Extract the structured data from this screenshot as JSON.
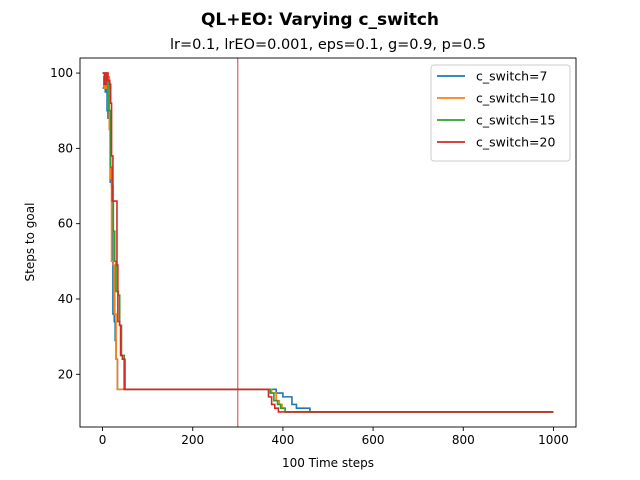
{
  "chart_data": {
    "type": "line",
    "title": "QL+EO: Varying c_switch",
    "subtitle": "lr=0.1, lrEO=0.001, eps=0.1, g=0.9, p=0.5",
    "xlabel": "100 Time steps",
    "ylabel": "Steps to goal",
    "xlim": [
      -50,
      1050
    ],
    "ylim": [
      6,
      104
    ],
    "xticks": [
      0,
      200,
      400,
      600,
      800,
      1000
    ],
    "yticks": [
      20,
      40,
      60,
      80,
      100
    ],
    "grid": false,
    "legend_position": "top-right",
    "vline": {
      "x": 300,
      "color": "#d62728"
    },
    "series": [
      {
        "name": "c_switch=7",
        "color": "#1f77b4",
        "points": [
          [
            0,
            96
          ],
          [
            3,
            99
          ],
          [
            6,
            95
          ],
          [
            8,
            100
          ],
          [
            10,
            90
          ],
          [
            12,
            88
          ],
          [
            15,
            90
          ],
          [
            17,
            71
          ],
          [
            20,
            70
          ],
          [
            23,
            36
          ],
          [
            26,
            34
          ],
          [
            28,
            29
          ],
          [
            30,
            24
          ],
          [
            33,
            16
          ],
          [
            40,
            16
          ],
          [
            50,
            16
          ],
          [
            180,
            16
          ],
          [
            370,
            16
          ],
          [
            385,
            15
          ],
          [
            400,
            14
          ],
          [
            415,
            14
          ],
          [
            420,
            12
          ],
          [
            430,
            11
          ],
          [
            440,
            11
          ],
          [
            460,
            10
          ],
          [
            1000,
            10
          ]
        ]
      },
      {
        "name": "c_switch=10",
        "color": "#ff7f0e",
        "points": [
          [
            0,
            100
          ],
          [
            4,
            96
          ],
          [
            8,
            100
          ],
          [
            12,
            99
          ],
          [
            15,
            85
          ],
          [
            18,
            72
          ],
          [
            20,
            50
          ],
          [
            24,
            49
          ],
          [
            27,
            36
          ],
          [
            30,
            24
          ],
          [
            33,
            16
          ],
          [
            50,
            16
          ],
          [
            360,
            16
          ],
          [
            375,
            15
          ],
          [
            385,
            13
          ],
          [
            392,
            12
          ],
          [
            398,
            11
          ],
          [
            405,
            10
          ],
          [
            1000,
            10
          ]
        ]
      },
      {
        "name": "c_switch=15",
        "color": "#2ca02c",
        "points": [
          [
            0,
            100
          ],
          [
            5,
            99
          ],
          [
            10,
            98
          ],
          [
            14,
            90
          ],
          [
            18,
            75
          ],
          [
            21,
            66
          ],
          [
            24,
            58
          ],
          [
            27,
            50
          ],
          [
            30,
            42
          ],
          [
            35,
            41
          ],
          [
            38,
            33
          ],
          [
            42,
            25
          ],
          [
            48,
            24
          ],
          [
            50,
            16
          ],
          [
            360,
            16
          ],
          [
            372,
            15
          ],
          [
            380,
            13
          ],
          [
            388,
            12
          ],
          [
            395,
            11
          ],
          [
            405,
            10
          ],
          [
            1000,
            10
          ]
        ]
      },
      {
        "name": "c_switch=20",
        "color": "#d62728",
        "points": [
          [
            0,
            100
          ],
          [
            4,
            97
          ],
          [
            8,
            100
          ],
          [
            12,
            98
          ],
          [
            16,
            97
          ],
          [
            18,
            92
          ],
          [
            20,
            78
          ],
          [
            23,
            66
          ],
          [
            30,
            66
          ],
          [
            32,
            49
          ],
          [
            34,
            34
          ],
          [
            38,
            33
          ],
          [
            40,
            25
          ],
          [
            44,
            24
          ],
          [
            48,
            16
          ],
          [
            360,
            16
          ],
          [
            368,
            14
          ],
          [
            375,
            12
          ],
          [
            382,
            11
          ],
          [
            390,
            10
          ],
          [
            1000,
            10
          ]
        ]
      }
    ]
  }
}
